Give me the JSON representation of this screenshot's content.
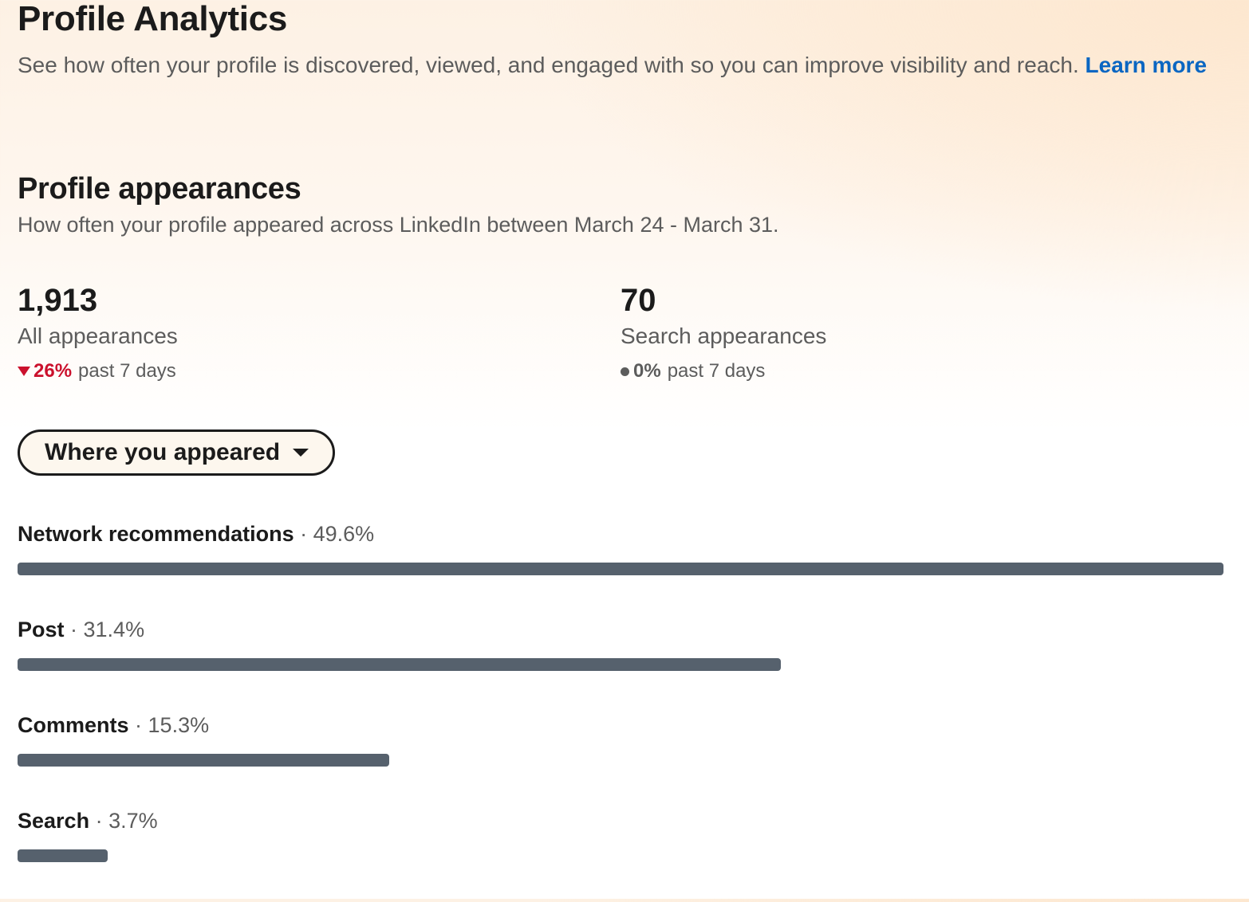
{
  "header": {
    "title": "Profile Analytics",
    "description": "See how often your profile is discovered, viewed, and engaged with so you can improve visibility and reach.",
    "learn_more": "Learn more"
  },
  "appearances": {
    "title": "Profile appearances",
    "subtitle": "How often your profile appeared across LinkedIn between March 24 - March 31.",
    "stats": [
      {
        "value": "1,913",
        "label": "All appearances",
        "change": "26%",
        "direction": "down",
        "period": "past 7 days",
        "color": "#cb112d"
      },
      {
        "value": "70",
        "label": "Search appearances",
        "change": "0%",
        "direction": "neutral",
        "period": "past 7 days",
        "color": "#5c5c5c"
      }
    ],
    "dropdown_label": "Where you appeared"
  },
  "chart_data": {
    "type": "bar",
    "orientation": "horizontal",
    "categories": [
      "Network recommendations",
      "Post",
      "Comments",
      "Search"
    ],
    "values": [
      49.6,
      31.4,
      15.3,
      3.7
    ],
    "value_labels": [
      "49.6%",
      "31.4%",
      "15.3%",
      "3.7%"
    ],
    "separator": "·",
    "bar_color": "#56616d"
  }
}
